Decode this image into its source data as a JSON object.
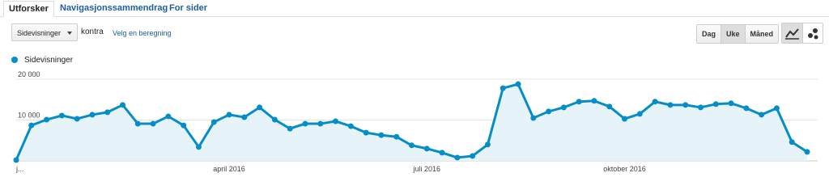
{
  "tabs": [
    "Utforsker",
    "Navigasjonssammendrag",
    "For sider"
  ],
  "controls": {
    "metric": "Sidevisninger",
    "versus": "kontra",
    "select_metric": "Velg en beregning",
    "periods": [
      "Dag",
      "Uke",
      "Måned"
    ]
  },
  "chart_data": {
    "type": "line",
    "categories": [
      "j...",
      null,
      null,
      null,
      null,
      null,
      null,
      null,
      null,
      null,
      null,
      null,
      null,
      null,
      "april 2016",
      null,
      null,
      null,
      null,
      null,
      null,
      null,
      null,
      null,
      null,
      null,
      null,
      "juli 2016",
      null,
      null,
      null,
      null,
      null,
      null,
      null,
      null,
      null,
      null,
      null,
      null,
      "oktober 2016",
      null,
      null,
      null,
      null,
      null,
      null,
      null,
      null,
      null,
      null,
      null,
      null
    ],
    "series": [
      {
        "name": "Sidevisninger",
        "color": "#058dc7",
        "values": [
          200,
          8700,
          10100,
          11100,
          10300,
          11300,
          11900,
          13700,
          9100,
          9100,
          10900,
          8700,
          3400,
          9500,
          11300,
          10700,
          13100,
          10100,
          7900,
          9100,
          9100,
          9700,
          8500,
          6900,
          6300,
          5900,
          3800,
          3000,
          2000,
          800,
          1200,
          4000,
          17800,
          18800,
          10500,
          12100,
          13100,
          14500,
          14700,
          13300,
          10300,
          11500,
          14500,
          13700,
          13700,
          13100,
          13900,
          14100,
          12900,
          11300,
          12900,
          4600,
          2200
        ]
      }
    ],
    "ylim": [
      0,
      20000
    ],
    "yticks": [
      {
        "value": 10000,
        "label": "10 000"
      },
      {
        "value": 20000,
        "label": "20 000"
      }
    ],
    "grid": true
  }
}
